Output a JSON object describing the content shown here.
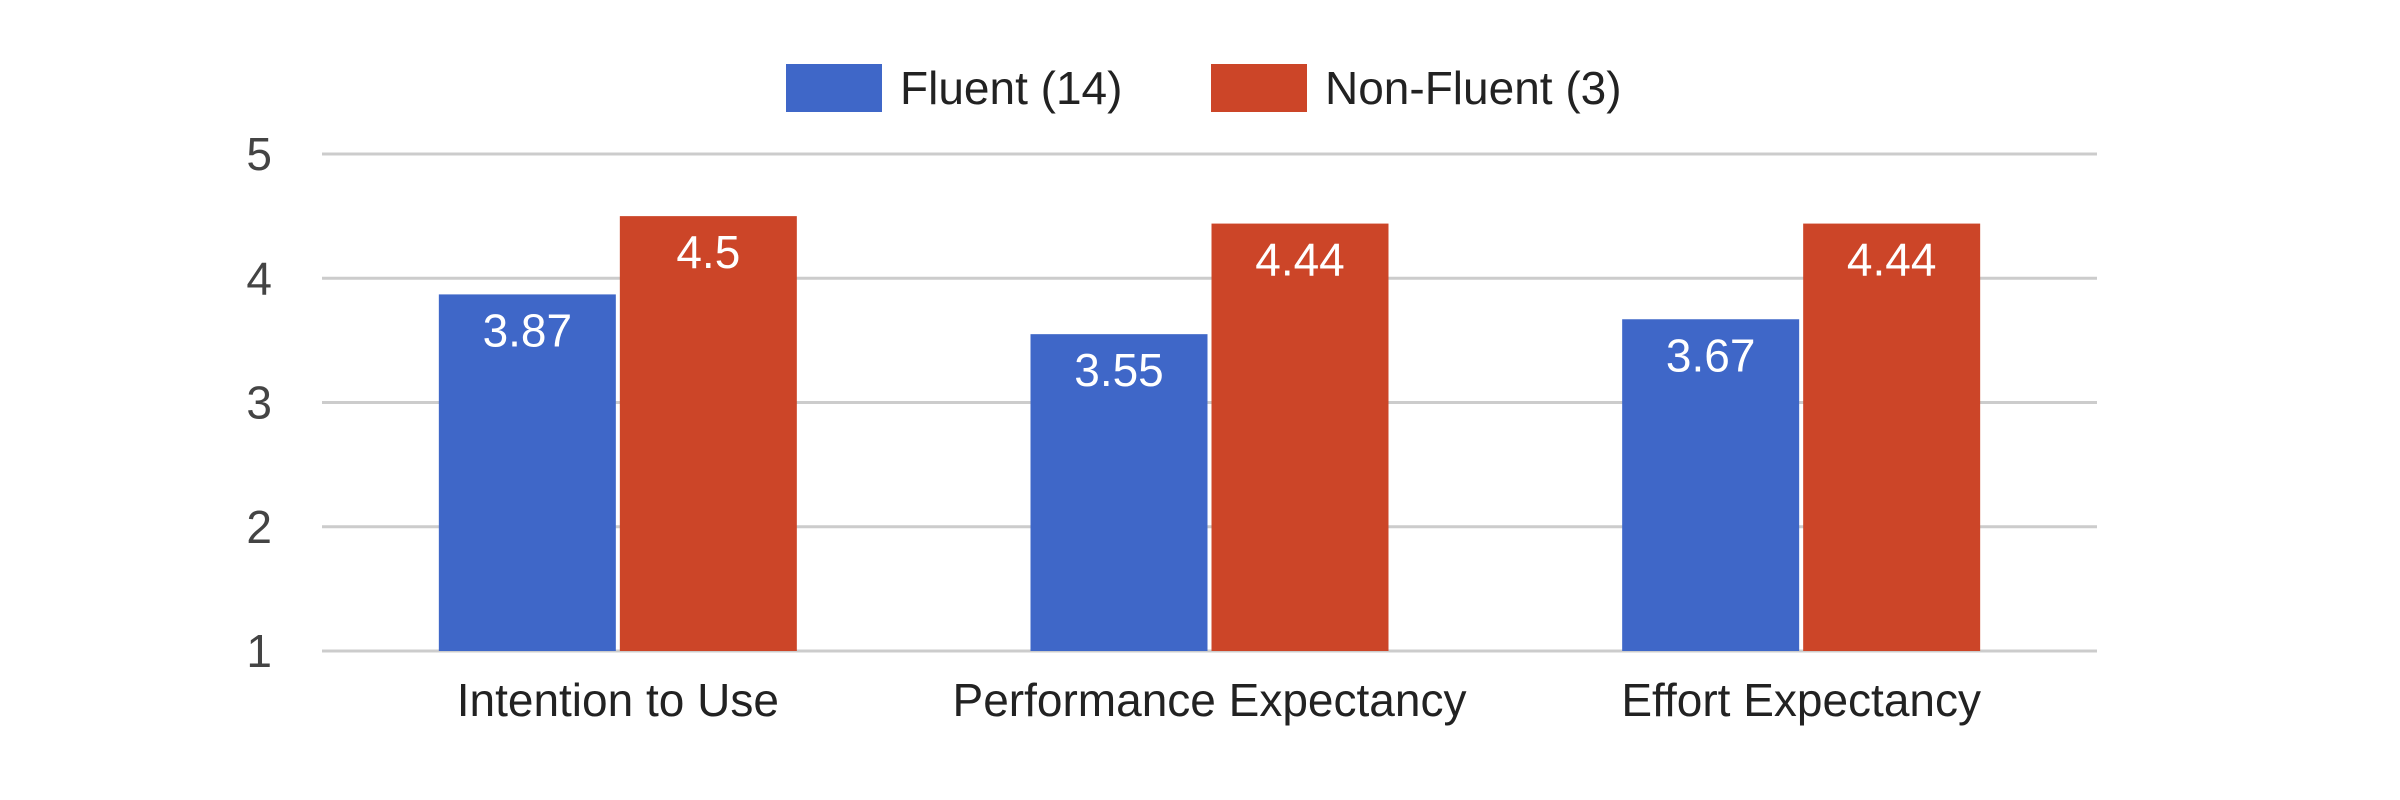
{
  "chart_data": {
    "type": "bar",
    "categories": [
      "Intention to Use",
      "Performance Expectancy",
      "Effort Expectancy"
    ],
    "series": [
      {
        "name": "Fluent (14)",
        "values": [
          3.87,
          3.55,
          3.67
        ],
        "color": "#3f67c8"
      },
      {
        "name": "Non-Fluent (3)",
        "values": [
          4.5,
          4.44,
          4.44
        ],
        "color": "#cc4528"
      }
    ],
    "data_labels": [
      [
        "3.87",
        "3.55",
        "3.67"
      ],
      [
        "4.5",
        "4.44",
        "4.44"
      ]
    ],
    "y_ticks": [
      "1",
      "2",
      "3",
      "4",
      "5"
    ],
    "ylim": [
      1,
      5
    ],
    "grid": true,
    "legend_position": "top-center",
    "title": "",
    "xlabel": "",
    "ylabel": ""
  }
}
